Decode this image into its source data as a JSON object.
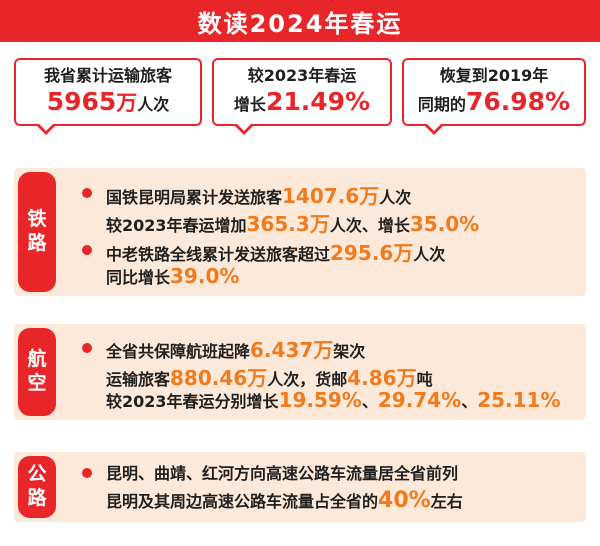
{
  "title": "数读2024年春运",
  "cards": [
    {
      "line1": "我省累计运输旅客",
      "value": "5965",
      "unit_big": "万",
      "unit": "人次"
    },
    {
      "line1": "较2023年春运",
      "prefix": "增长",
      "value": "21.49%"
    },
    {
      "line1": "恢复到2019年",
      "prefix": "同期的",
      "value": "76.98%"
    }
  ],
  "rail": {
    "tag": [
      "铁",
      "路"
    ],
    "item1_l1": {
      "a": "国铁昆明局累计发送旅客",
      "n": "1407.6",
      "u": "万",
      "b": "人次"
    },
    "item1_l2": {
      "a": "较2023年春运增加",
      "n": "365.3",
      "u": "万",
      "b": "人次、增长",
      "n2": "35.0%"
    },
    "item2_l1": {
      "a": "中老铁路全线累计发送旅客超过",
      "n": "295.6",
      "u": "万",
      "b": "人次"
    },
    "item2_l2": {
      "a": "同比增长",
      "n": "39.0%"
    }
  },
  "air": {
    "tag": [
      "航",
      "空"
    ],
    "l1": {
      "a": "全省共保障航班起降",
      "n": "6.437",
      "u": "万",
      "b": "架次"
    },
    "l2": {
      "a": "运输旅客",
      "n": "880.46",
      "u": "万",
      "b": "人次，货邮",
      "n2": "4.86",
      "u2": "万",
      "c": "吨"
    },
    "l3": {
      "a": "较2023年春运分别增长",
      "n": "19.59%",
      "s1": "、",
      "n2": "29.74%",
      "s2": "、",
      "n3": "25.11%"
    }
  },
  "road": {
    "tag": [
      "公",
      "路"
    ],
    "l1": "昆明、曲靖、红河方向高速公路车流量居全省前列",
    "l2": {
      "a": "昆明及其周边高速公路车流量占全省的",
      "n": "40%",
      "b": "左右"
    }
  },
  "colors": {
    "red": "#e8262a",
    "orange": "#f07b1e",
    "panel": "#fde9da"
  }
}
